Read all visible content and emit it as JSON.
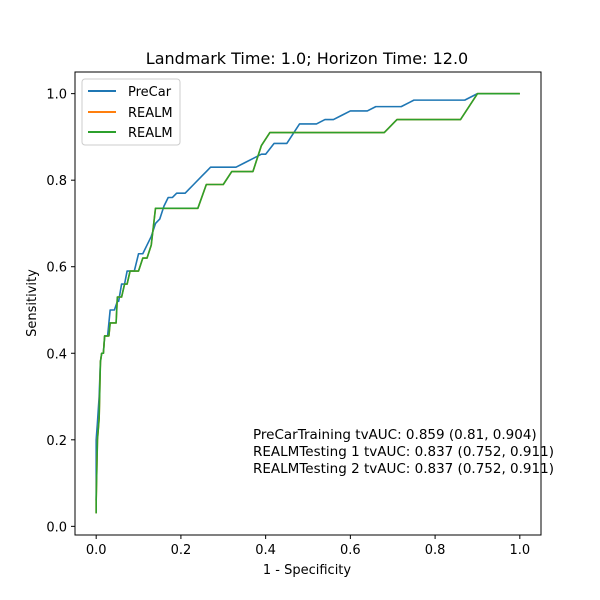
{
  "chart_data": {
    "type": "line",
    "title": "Landmark Time: 1.0; Horizon Time: 12.0",
    "xlabel": "1 - Specificity",
    "ylabel": "Sensitivity",
    "xlim": [
      -0.05,
      1.05
    ],
    "ylim": [
      -0.02,
      1.05
    ],
    "xticks": [
      0.0,
      0.2,
      0.4,
      0.6,
      0.8,
      1.0
    ],
    "yticks": [
      0.0,
      0.2,
      0.4,
      0.6,
      0.8,
      1.0
    ],
    "tick_labels_x": [
      "0.0",
      "0.2",
      "0.4",
      "0.6",
      "0.8",
      "1.0"
    ],
    "tick_labels_y": [
      "0.0",
      "0.2",
      "0.4",
      "0.6",
      "0.8",
      "1.0"
    ],
    "grid": false,
    "legend_position": "top-left",
    "series": [
      {
        "name": "PreCar",
        "color": "#1f77b4",
        "x": [
          0.0,
          0.0,
          0.003,
          0.007,
          0.01,
          0.013,
          0.017,
          0.02,
          0.027,
          0.03,
          0.033,
          0.04,
          0.043,
          0.05,
          0.053,
          0.06,
          0.067,
          0.073,
          0.08,
          0.09,
          0.1,
          0.11,
          0.12,
          0.13,
          0.14,
          0.15,
          0.16,
          0.17,
          0.18,
          0.19,
          0.2,
          0.21,
          0.22,
          0.23,
          0.25,
          0.26,
          0.27,
          0.29,
          0.3,
          0.33,
          0.35,
          0.37,
          0.39,
          0.4,
          0.42,
          0.44,
          0.45,
          0.46,
          0.48,
          0.5,
          0.52,
          0.54,
          0.56,
          0.58,
          0.6,
          0.62,
          0.64,
          0.66,
          0.7,
          0.72,
          0.74,
          0.75,
          0.78,
          0.82,
          0.87,
          0.9,
          1.0
        ],
        "y": [
          0.06,
          0.2,
          0.24,
          0.3,
          0.38,
          0.4,
          0.4,
          0.44,
          0.44,
          0.47,
          0.5,
          0.5,
          0.5,
          0.52,
          0.52,
          0.56,
          0.56,
          0.59,
          0.59,
          0.59,
          0.63,
          0.63,
          0.65,
          0.67,
          0.7,
          0.71,
          0.74,
          0.76,
          0.76,
          0.77,
          0.77,
          0.77,
          0.78,
          0.79,
          0.81,
          0.82,
          0.83,
          0.83,
          0.83,
          0.83,
          0.84,
          0.85,
          0.86,
          0.86,
          0.885,
          0.885,
          0.885,
          0.9,
          0.93,
          0.93,
          0.93,
          0.94,
          0.94,
          0.95,
          0.96,
          0.96,
          0.96,
          0.97,
          0.97,
          0.97,
          0.98,
          0.985,
          0.985,
          0.985,
          0.985,
          1.0,
          1.0
        ]
      },
      {
        "name": "REALM",
        "color": "#ff7f0e",
        "x": [
          0.0,
          0.0,
          0.003,
          0.007,
          0.01,
          0.013,
          0.017,
          0.02,
          0.027,
          0.03,
          0.033,
          0.04,
          0.047,
          0.05,
          0.053,
          0.06,
          0.067,
          0.073,
          0.08,
          0.1,
          0.11,
          0.12,
          0.13,
          0.14,
          0.16,
          0.17,
          0.18,
          0.2,
          0.22,
          0.24,
          0.26,
          0.27,
          0.3,
          0.32,
          0.35,
          0.37,
          0.39,
          0.41,
          0.45,
          0.5,
          0.55,
          0.6,
          0.66,
          0.68,
          0.71,
          0.75,
          0.8,
          0.86,
          0.9,
          1.0
        ],
        "y": [
          0.03,
          0.06,
          0.2,
          0.25,
          0.38,
          0.4,
          0.4,
          0.44,
          0.44,
          0.44,
          0.47,
          0.47,
          0.47,
          0.53,
          0.53,
          0.53,
          0.56,
          0.56,
          0.59,
          0.59,
          0.62,
          0.62,
          0.65,
          0.735,
          0.735,
          0.735,
          0.735,
          0.735,
          0.735,
          0.735,
          0.79,
          0.79,
          0.79,
          0.82,
          0.82,
          0.82,
          0.88,
          0.91,
          0.91,
          0.91,
          0.91,
          0.91,
          0.91,
          0.91,
          0.94,
          0.94,
          0.94,
          0.94,
          1.0,
          1.0
        ]
      },
      {
        "name": "REALM",
        "color": "#2ca02c",
        "x": [
          0.0,
          0.0,
          0.003,
          0.007,
          0.01,
          0.013,
          0.017,
          0.02,
          0.027,
          0.03,
          0.033,
          0.04,
          0.047,
          0.05,
          0.053,
          0.06,
          0.067,
          0.073,
          0.08,
          0.1,
          0.11,
          0.12,
          0.13,
          0.14,
          0.16,
          0.17,
          0.18,
          0.2,
          0.22,
          0.24,
          0.26,
          0.27,
          0.3,
          0.32,
          0.35,
          0.37,
          0.39,
          0.41,
          0.45,
          0.5,
          0.55,
          0.6,
          0.66,
          0.68,
          0.71,
          0.75,
          0.8,
          0.86,
          0.9,
          1.0
        ],
        "y": [
          0.03,
          0.06,
          0.2,
          0.25,
          0.38,
          0.4,
          0.4,
          0.44,
          0.44,
          0.44,
          0.47,
          0.47,
          0.47,
          0.53,
          0.53,
          0.53,
          0.56,
          0.56,
          0.59,
          0.59,
          0.62,
          0.62,
          0.65,
          0.735,
          0.735,
          0.735,
          0.735,
          0.735,
          0.735,
          0.735,
          0.79,
          0.79,
          0.79,
          0.82,
          0.82,
          0.82,
          0.88,
          0.91,
          0.91,
          0.91,
          0.91,
          0.91,
          0.91,
          0.91,
          0.94,
          0.94,
          0.94,
          0.94,
          1.0,
          1.0
        ]
      }
    ],
    "annotations": [
      "PreCarTraining tvAUC: 0.859 (0.81, 0.904)",
      "REALMTesting 1 tvAUC: 0.837 (0.752, 0.911)",
      "REALMTesting 2 tvAUC: 0.837 (0.752, 0.911)"
    ]
  }
}
